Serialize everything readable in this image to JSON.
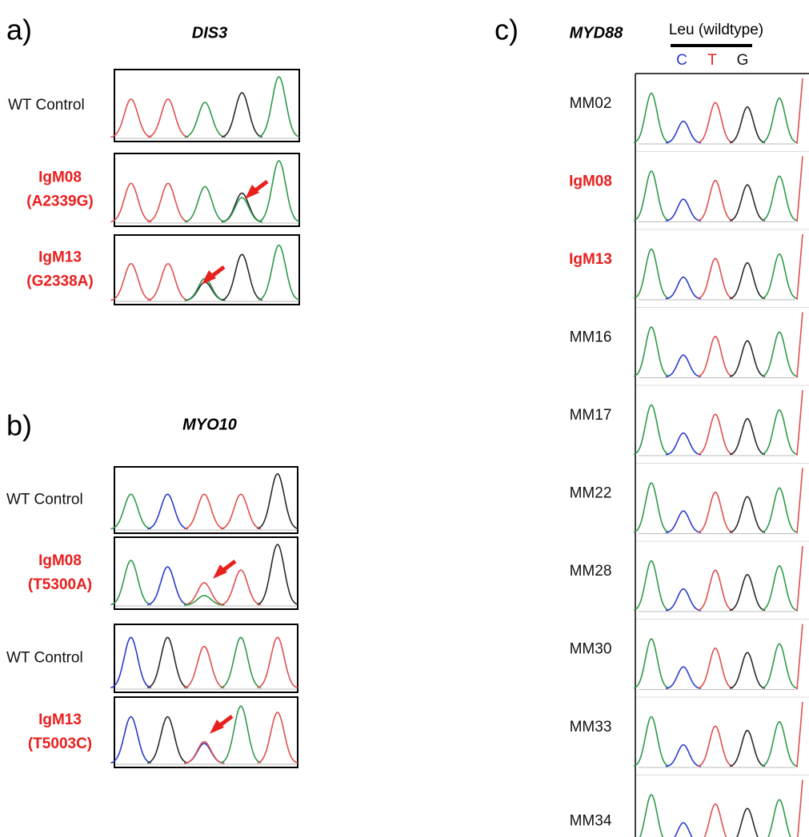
{
  "panel_a": {
    "label": "a)",
    "gene": "DIS3",
    "rows": [
      {
        "lines": [
          "WT Control"
        ],
        "color": "black"
      },
      {
        "lines": [
          "IgM08",
          "(A2339G)"
        ],
        "color": "red"
      },
      {
        "lines": [
          "IgM13",
          "(G2338A)"
        ],
        "color": "red"
      }
    ]
  },
  "panel_b": {
    "label": "b)",
    "gene": "MYO10",
    "rows": [
      {
        "lines": [
          "WT Control"
        ],
        "color": "black"
      },
      {
        "lines": [
          "IgM08",
          "(T5300A)"
        ],
        "color": "red"
      },
      {
        "lines": [
          "WT Control"
        ],
        "color": "black"
      },
      {
        "lines": [
          "IgM13",
          "(T5003C)"
        ],
        "color": "red"
      }
    ]
  },
  "panel_c": {
    "label": "c)",
    "gene": "MYD88",
    "annotation": "Leu (wildtype)",
    "bases": [
      {
        "text": "C",
        "color": "blue"
      },
      {
        "text": "T",
        "color": "red"
      },
      {
        "text": "G",
        "color": "black"
      }
    ],
    "rows": [
      {
        "lines": [
          "MM02"
        ],
        "color": "black"
      },
      {
        "lines": [
          "IgM08"
        ],
        "color": "red"
      },
      {
        "lines": [
          "IgM13"
        ],
        "color": "red"
      },
      {
        "lines": [
          "MM16"
        ],
        "color": "black"
      },
      {
        "lines": [
          "MM17"
        ],
        "color": "black"
      },
      {
        "lines": [
          "MM22"
        ],
        "color": "black"
      },
      {
        "lines": [
          "MM28"
        ],
        "color": "black"
      },
      {
        "lines": [
          "MM30"
        ],
        "color": "black"
      },
      {
        "lines": [
          "MM33"
        ],
        "color": "black"
      },
      {
        "lines": [
          "MM34"
        ],
        "color": "black"
      }
    ]
  }
}
